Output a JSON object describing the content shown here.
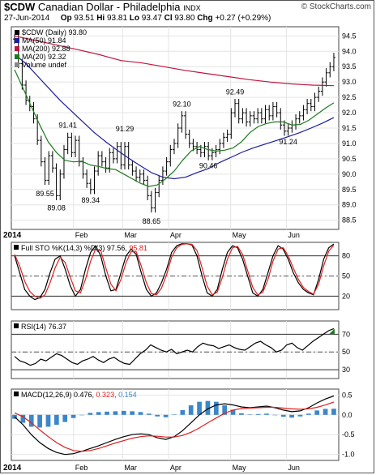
{
  "header": {
    "symbol": "$CDW",
    "name": "Canadian Dollar - Philadelphia",
    "exchange": "INDX",
    "date": "27-Jun-2014",
    "op_label": "Op",
    "op": "93.51",
    "hi_label": "Hi",
    "hi": "93.81",
    "lo_label": "Lo",
    "lo": "93.47",
    "cl_label": "Cl",
    "cl": "93.80",
    "chg_label": "Chg",
    "chg": "+0.27 (+0.29%)",
    "watermark": "© StockCharts.com"
  },
  "chart_data": [
    {
      "type": "line",
      "panel": "price",
      "legend": [
        {
          "text": "$CDW (Daily) 93.80",
          "color": "#000000"
        },
        {
          "text": "MA(50) 91.84",
          "color": "#1c1c9c"
        },
        {
          "text": "MA(200) 92.88",
          "color": "#c0143c"
        },
        {
          "text": "MA(20) 92.32",
          "color": "#1f7a1f"
        },
        {
          "text": "Volume undef",
          "color": "#888888"
        }
      ],
      "ylim": [
        88.2,
        94.8
      ],
      "yticks": [
        88.5,
        89.0,
        89.5,
        90.0,
        90.5,
        91.0,
        91.5,
        92.0,
        92.5,
        93.0,
        93.5,
        94.0,
        94.5
      ],
      "xlabels": [
        "2014",
        "Feb",
        "Mar",
        "Apr",
        "May",
        "Jun"
      ],
      "annotations": [
        {
          "text": "89.55",
          "i": 8,
          "v": 89.55,
          "pos": "below"
        },
        {
          "text": "89.08",
          "i": 11,
          "v": 89.08,
          "pos": "below"
        },
        {
          "text": "91.41",
          "i": 14,
          "v": 91.41,
          "pos": "above"
        },
        {
          "text": "89.34",
          "i": 20,
          "v": 89.34,
          "pos": "below"
        },
        {
          "text": "91.29",
          "i": 29,
          "v": 91.29,
          "pos": "above"
        },
        {
          "text": "88.65",
          "i": 36,
          "v": 88.65,
          "pos": "below"
        },
        {
          "text": "92.10",
          "i": 44,
          "v": 92.1,
          "pos": "above"
        },
        {
          "text": "90.46",
          "i": 51,
          "v": 90.46,
          "pos": "below"
        },
        {
          "text": "92.49",
          "i": 58,
          "v": 92.49,
          "pos": "above"
        },
        {
          "text": "91.24",
          "i": 72,
          "v": 91.24,
          "pos": "below"
        }
      ],
      "series": [
        {
          "name": "$CDW (Daily)",
          "style": "ohlc",
          "color": "#000000",
          "values": [
            94.4,
            93.6,
            92.9,
            92.4,
            92.2,
            91.8,
            91.1,
            90.4,
            89.8,
            90.6,
            90.2,
            89.3,
            90.0,
            90.8,
            91.2,
            90.7,
            91.1,
            90.4,
            90.0,
            89.7,
            89.5,
            90.1,
            90.6,
            90.4,
            90.2,
            90.7,
            90.5,
            90.9,
            90.3,
            90.9,
            90.3,
            90.1,
            89.9,
            90.0,
            89.8,
            89.3,
            88.9,
            89.4,
            89.8,
            90.1,
            90.4,
            90.8,
            91.0,
            91.5,
            91.9,
            91.3,
            91.0,
            90.9,
            90.8,
            90.7,
            90.9,
            90.6,
            90.7,
            90.8,
            91.0,
            91.2,
            91.3,
            92.0,
            92.3,
            91.8,
            92.0,
            91.7,
            91.9,
            91.8,
            92.0,
            91.8,
            92.1,
            91.9,
            92.2,
            92.0,
            91.6,
            91.4,
            91.5,
            91.6,
            91.8,
            91.9,
            92.1,
            92.3,
            92.2,
            92.5,
            92.7,
            93.0,
            93.3,
            93.5,
            93.8
          ]
        },
        {
          "name": "MA(200)",
          "style": "line",
          "color": "#c0143c",
          "values": [
            94.5,
            94.35,
            94.2,
            94.05,
            93.89,
            93.7,
            93.62,
            93.5,
            93.38,
            93.28,
            93.18,
            93.08,
            93.0,
            92.94,
            92.9,
            92.88
          ]
        },
        {
          "name": "MA(50)",
          "style": "line",
          "color": "#1c1c9c",
          "values": [
            93.9,
            93.6,
            93.2,
            92.8,
            92.4,
            92.05,
            91.7,
            91.35,
            91.05,
            90.78,
            90.52,
            90.28,
            90.05,
            89.9,
            89.85,
            89.9,
            90.05,
            90.18,
            90.38,
            90.55,
            90.72,
            90.86,
            90.98,
            91.1,
            91.22,
            91.35,
            91.5,
            91.66,
            91.84
          ]
        },
        {
          "name": "MA(20)",
          "style": "line",
          "color": "#1f7a1f",
          "values": [
            93.4,
            92.8,
            92.2,
            91.6,
            91.05,
            90.7,
            90.45,
            90.4,
            90.42,
            90.3,
            90.25,
            90.18,
            90.15,
            90.0,
            89.85,
            89.7,
            89.6,
            89.65,
            89.85,
            90.1,
            90.45,
            90.75,
            90.9,
            90.8,
            90.75,
            90.78,
            90.85,
            91.05,
            91.35,
            91.55,
            91.65,
            91.7,
            91.7,
            91.6,
            91.62,
            91.75,
            91.95,
            92.15,
            92.32
          ]
        }
      ]
    },
    {
      "type": "line",
      "panel": "stochastic",
      "legend": [
        {
          "text": "Full STO %K(14,3) %D(3) 97.56,",
          "color": "#000000"
        },
        {
          "text": "95.81",
          "color": "#e02020"
        }
      ],
      "ylim": [
        0,
        100
      ],
      "yticks": [
        20,
        50,
        80
      ],
      "series": [
        {
          "name": "%K",
          "color": "#000000",
          "values": [
            80,
            55,
            30,
            20,
            15,
            18,
            30,
            55,
            75,
            80,
            60,
            35,
            20,
            30,
            60,
            85,
            95,
            80,
            50,
            28,
            30,
            55,
            80,
            90,
            82,
            55,
            30,
            20,
            25,
            40,
            60,
            85,
            95,
            98,
            98,
            96,
            80,
            50,
            25,
            20,
            30,
            60,
            85,
            95,
            92,
            75,
            50,
            25,
            20,
            30,
            55,
            80,
            95,
            90,
            75,
            55,
            40,
            30,
            25,
            22,
            45,
            75,
            92,
            97.5
          ]
        },
        {
          "name": "%D",
          "color": "#e02020",
          "values": [
            82,
            65,
            42,
            27,
            20,
            17,
            22,
            40,
            62,
            78,
            70,
            48,
            28,
            25,
            45,
            72,
            90,
            88,
            62,
            38,
            28,
            45,
            70,
            86,
            86,
            65,
            40,
            24,
            22,
            32,
            52,
            78,
            92,
            97,
            98,
            97,
            88,
            62,
            35,
            22,
            26,
            48,
            75,
            92,
            94,
            82,
            58,
            33,
            22,
            26,
            45,
            72,
            90,
            92,
            80,
            62,
            45,
            33,
            27,
            23,
            38,
            65,
            87,
            95.8
          ]
        }
      ]
    },
    {
      "type": "line",
      "panel": "rsi",
      "legend": [
        {
          "text": "RSI(14) 76.37",
          "color": "#000000"
        }
      ],
      "ylim": [
        20,
        85
      ],
      "yticks": [
        30,
        50,
        70
      ],
      "ytick_labels": [
        "30",
        "50",
        "70"
      ],
      "series": [
        {
          "name": "RSI(14)",
          "color": "#000000",
          "values": [
            45,
            40,
            38,
            35,
            37,
            42,
            40,
            44,
            48,
            46,
            42,
            38,
            36,
            40,
            42,
            45,
            41,
            38,
            42,
            44,
            40,
            37,
            36,
            42,
            48,
            52,
            58,
            55,
            52,
            50,
            53,
            48,
            50,
            52,
            50,
            56,
            60,
            58,
            57,
            54,
            56,
            58,
            55,
            53,
            52,
            56,
            60,
            62,
            58,
            55,
            50,
            52,
            58,
            60,
            55,
            52,
            57,
            62,
            66,
            70,
            74,
            76.4
          ]
        }
      ]
    },
    {
      "type": "line",
      "panel": "macd",
      "legend": [
        {
          "text": "MACD(12,26,9) 0.476,",
          "color": "#000000"
        },
        {
          "text": "0.323,",
          "color": "#e02020"
        },
        {
          "text": "0.154",
          "color": "#3a87c9"
        }
      ],
      "ylim": [
        -1.15,
        0.65
      ],
      "yticks": [
        -1.0,
        -0.5,
        0.0,
        0.5
      ],
      "ytick_labels": [
        "-1.0",
        "-0.5",
        "0.0",
        "0.5"
      ],
      "series": [
        {
          "name": "MACD",
          "color": "#000000",
          "values": [
            -0.05,
            -0.25,
            -0.5,
            -0.7,
            -0.85,
            -0.95,
            -1.0,
            -0.98,
            -0.92,
            -0.85,
            -0.78,
            -0.7,
            -0.62,
            -0.55,
            -0.5,
            -0.48,
            -0.5,
            -0.58,
            -0.62,
            -0.55,
            -0.4,
            -0.2,
            0.0,
            0.15,
            0.25,
            0.28,
            0.25,
            0.2,
            0.18,
            0.2,
            0.22,
            0.18,
            0.12,
            0.08,
            0.1,
            0.18,
            0.3,
            0.4,
            0.476
          ]
        },
        {
          "name": "Signal",
          "color": "#e02020",
          "values": [
            0.05,
            -0.05,
            -0.2,
            -0.38,
            -0.55,
            -0.7,
            -0.82,
            -0.9,
            -0.92,
            -0.9,
            -0.85,
            -0.78,
            -0.71,
            -0.65,
            -0.59,
            -0.55,
            -0.53,
            -0.54,
            -0.56,
            -0.56,
            -0.52,
            -0.44,
            -0.33,
            -0.2,
            -0.08,
            0.04,
            0.12,
            0.16,
            0.17,
            0.18,
            0.19,
            0.19,
            0.17,
            0.15,
            0.14,
            0.15,
            0.19,
            0.25,
            0.323
          ]
        },
        {
          "name": "Histogram",
          "style": "bar",
          "color": "#3a87c9",
          "values": [
            -0.1,
            -0.2,
            -0.3,
            -0.32,
            -0.3,
            -0.25,
            -0.18,
            -0.08,
            0.0,
            0.05,
            0.07,
            0.08,
            0.09,
            0.1,
            0.09,
            0.07,
            0.03,
            -0.04,
            -0.06,
            0.01,
            0.12,
            0.24,
            0.33,
            0.35,
            0.33,
            0.24,
            0.13,
            0.04,
            0.01,
            0.02,
            0.03,
            -0.01,
            -0.05,
            -0.07,
            -0.04,
            0.03,
            0.11,
            0.15,
            0.154
          ]
        }
      ]
    }
  ]
}
